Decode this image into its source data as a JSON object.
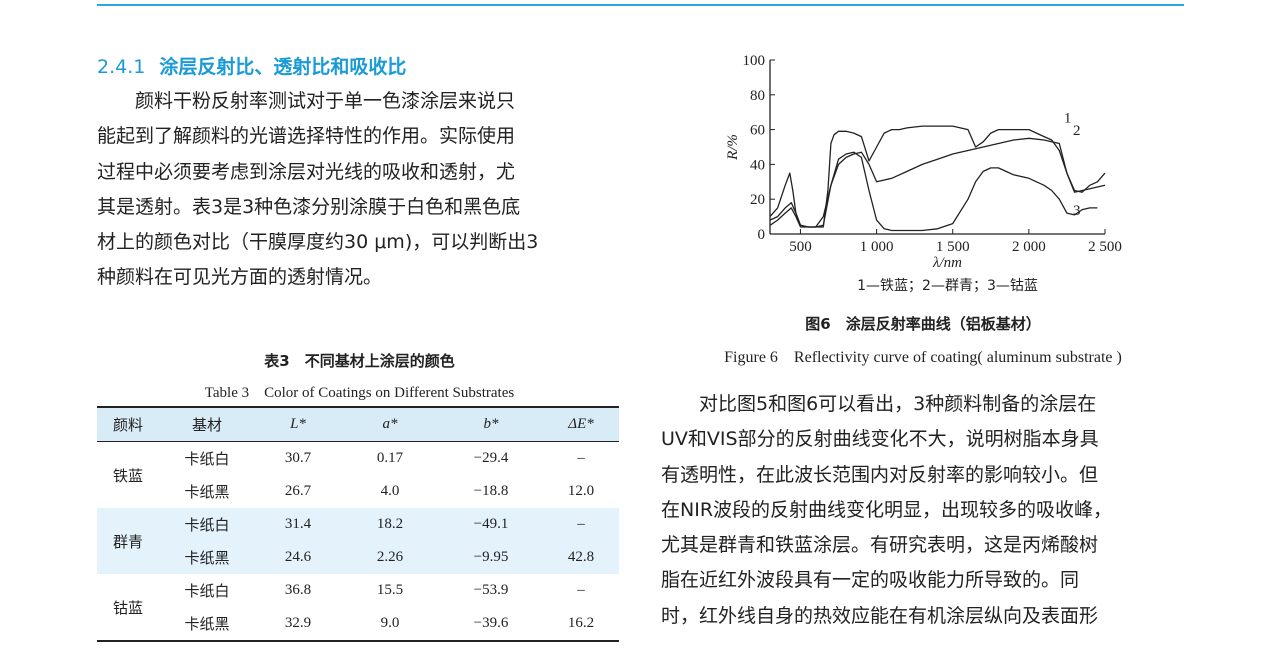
{
  "section": {
    "number": "2.4.1",
    "title": "涂层反射比、透射比和吸收比"
  },
  "left_paragraph": [
    "　　颜料干粉反射率测试对于单一色漆涂层来说只",
    "能起到了解颜料的光谱选择特性的作用。实际使用",
    "过程中必须要考虑到涂层对光线的吸收和透射，尤",
    "其是透射。表3是3种色漆分别涂膜于白色和黑色底",
    "材上的颜色对比（干膜厚度约30 μm)，可以判断出3",
    "种颜料在可见光方面的透射情况。"
  ],
  "table": {
    "caption_cn": "表3　不同基材上涂层的颜色",
    "caption_en": "Table 3　Color of Coatings on Different Substrates",
    "headers": [
      "颜料",
      "基材",
      "L*",
      "a*",
      "b*",
      "ΔE*"
    ],
    "rows": [
      {
        "pigment": "铁蓝",
        "substrate": "卡纸白",
        "L": "30.7",
        "a": "0.17",
        "b": "−29.4",
        "dE": "–"
      },
      {
        "pigment": "",
        "substrate": "卡纸黑",
        "L": "26.7",
        "a": "4.0",
        "b": "−18.8",
        "dE": "12.0"
      },
      {
        "pigment": "群青",
        "substrate": "卡纸白",
        "L": "31.4",
        "a": "18.2",
        "b": "−49.1",
        "dE": "–"
      },
      {
        "pigment": "",
        "substrate": "卡纸黑",
        "L": "24.6",
        "a": "2.26",
        "b": "−9.95",
        "dE": "42.8"
      },
      {
        "pigment": "钴蓝",
        "substrate": "卡纸白",
        "L": "36.8",
        "a": "15.5",
        "b": "−53.9",
        "dE": "–"
      },
      {
        "pigment": "",
        "substrate": "卡纸黑",
        "L": "32.9",
        "a": "9.0",
        "b": "−39.6",
        "dE": "16.2"
      }
    ]
  },
  "figure": {
    "caption_cn": "图6　涂层反射率曲线（铝板基材）",
    "caption_en": "Figure 6　Reflectivity curve of coating( aluminum substrate )",
    "legend_text": "1—铁蓝；2—群青；3—钴蓝"
  },
  "chart_data": {
    "type": "line",
    "xlabel": "λ/nm",
    "ylabel": "R/%",
    "xlim": [
      300,
      2500
    ],
    "ylim": [
      0,
      100
    ],
    "xticks": [
      500,
      1000,
      1500,
      2000,
      2500
    ],
    "xtick_labels": [
      "500",
      "1 000",
      "1 500",
      "2 000",
      "2 500"
    ],
    "yticks": [
      0,
      20,
      40,
      60,
      80,
      100
    ],
    "ytick_labels": [
      "0",
      "20",
      "40",
      "60",
      "80",
      "100"
    ],
    "series": [
      {
        "name": "1",
        "x": [
          300,
          350,
          400,
          440,
          470,
          500,
          550,
          600,
          650,
          680,
          700,
          720,
          750,
          800,
          850,
          900,
          950,
          1000,
          1050,
          1100,
          1150,
          1200,
          1300,
          1400,
          1500,
          1600,
          1650,
          1700,
          1750,
          1800,
          1900,
          2000,
          2100,
          2150,
          2200,
          2250,
          2300,
          2350,
          2400,
          2450,
          2500
        ],
        "y": [
          8,
          10,
          15,
          18,
          12,
          5,
          4,
          4,
          4,
          25,
          52,
          57,
          59,
          59,
          58,
          56,
          42,
          50,
          58,
          60,
          60,
          61,
          62,
          62,
          62,
          60,
          50,
          53,
          58,
          60,
          60,
          60,
          56,
          54,
          48,
          35,
          25,
          24,
          28,
          30,
          35
        ]
      },
      {
        "name": "2",
        "x": [
          300,
          350,
          400,
          440,
          470,
          500,
          550,
          600,
          650,
          700,
          750,
          800,
          850,
          900,
          950,
          1000,
          1100,
          1200,
          1300,
          1400,
          1500,
          1600,
          1700,
          1800,
          1900,
          2000,
          2100,
          2200,
          2250,
          2300,
          2400,
          2500
        ],
        "y": [
          5,
          8,
          12,
          15,
          10,
          4,
          4,
          4,
          10,
          28,
          40,
          44,
          46,
          47,
          40,
          30,
          32,
          36,
          40,
          43,
          46,
          48,
          50,
          52,
          54,
          55,
          54,
          52,
          35,
          24,
          26,
          28
        ]
      },
      {
        "name": "3",
        "x": [
          300,
          350,
          400,
          430,
          450,
          470,
          500,
          550,
          600,
          650,
          700,
          750,
          800,
          850,
          900,
          950,
          1000,
          1050,
          1100,
          1200,
          1300,
          1400,
          1500,
          1600,
          1650,
          1700,
          1750,
          1800,
          1850,
          1900,
          2000,
          2100,
          2150,
          2200,
          2250,
          2300,
          2350,
          2400,
          2450
        ],
        "y": [
          10,
          15,
          28,
          35,
          25,
          12,
          5,
          4,
          4,
          5,
          28,
          43,
          46,
          47,
          44,
          25,
          8,
          3,
          2,
          2,
          2,
          3,
          6,
          20,
          30,
          36,
          38,
          38,
          36,
          34,
          32,
          28,
          25,
          20,
          12,
          11,
          14,
          15,
          15
        ]
      }
    ]
  }
}
